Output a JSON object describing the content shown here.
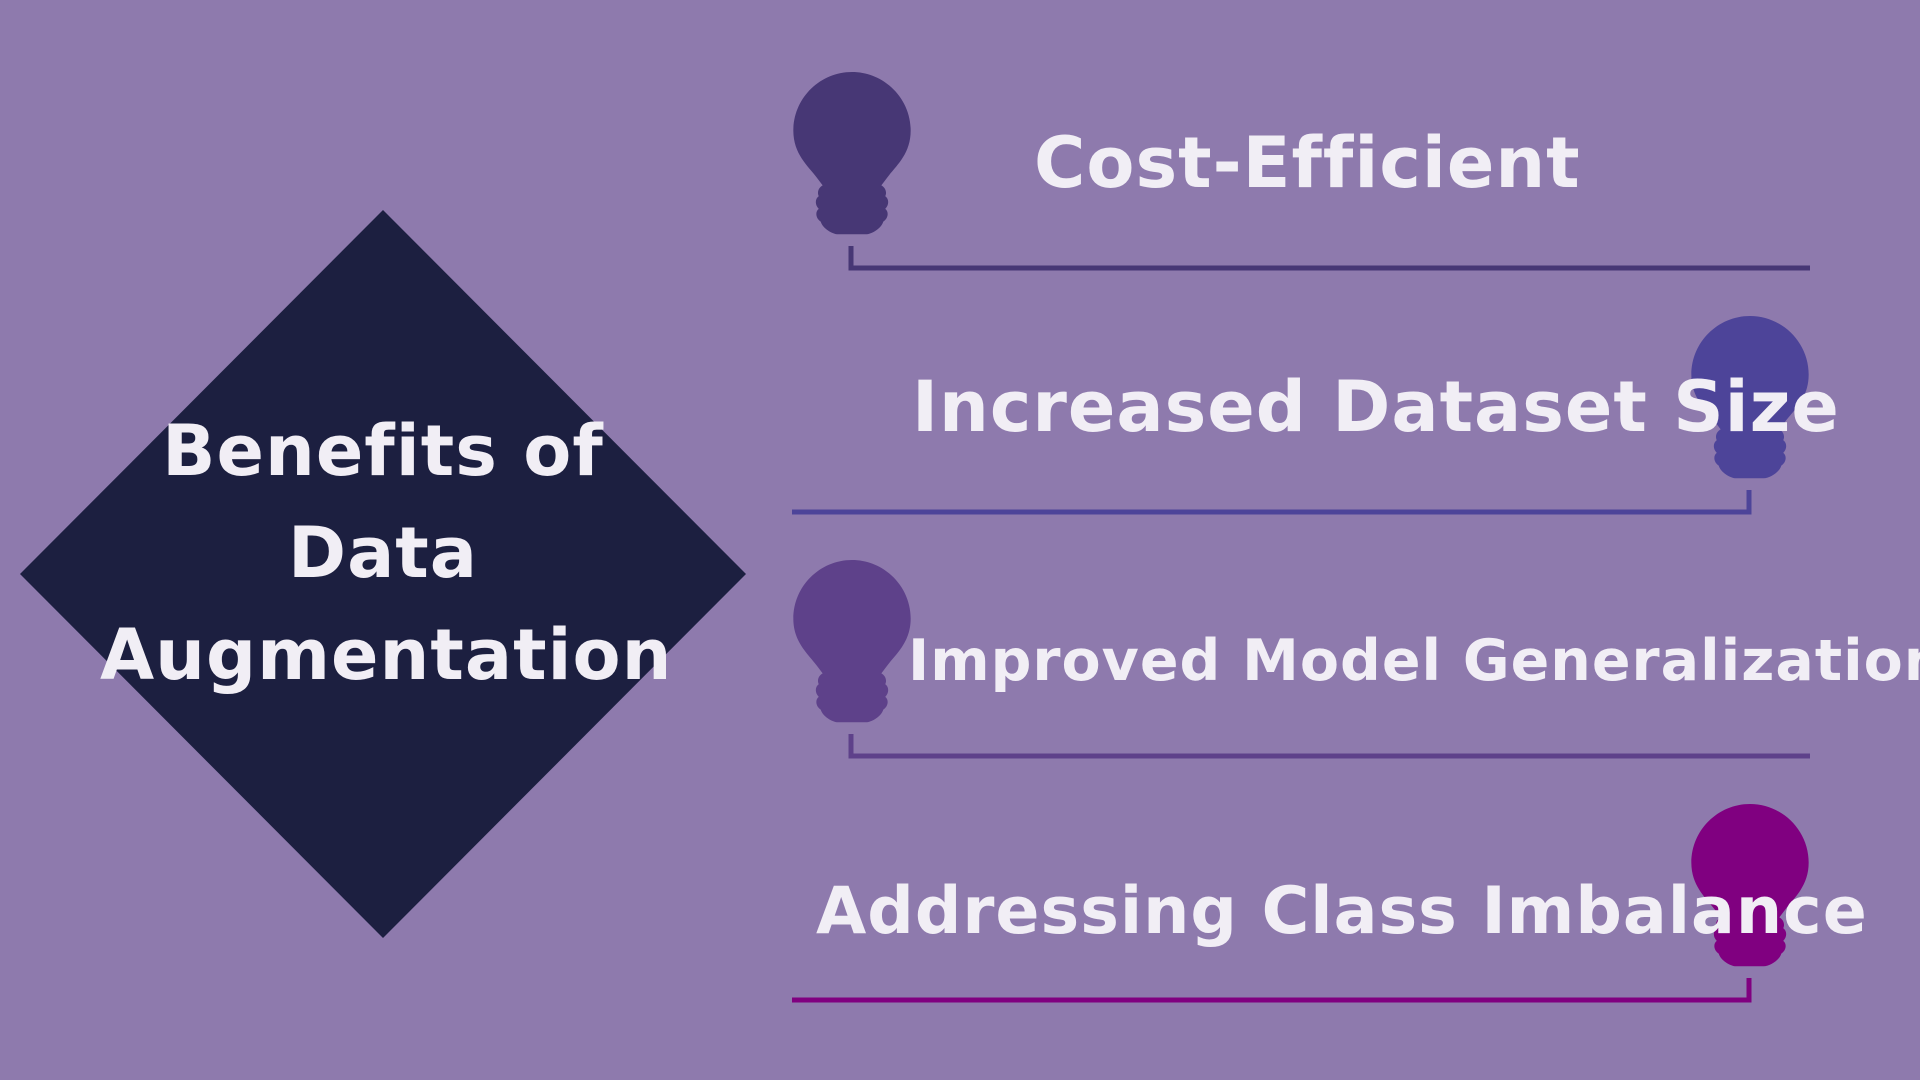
{
  "title": {
    "line1": "Benefits of",
    "line2": "Data",
    "line3": "Augmentation"
  },
  "benefits": [
    {
      "label": "Cost-Efficient",
      "color": "#473775",
      "icon": "lightbulb-icon"
    },
    {
      "label": "Increased Dataset Size",
      "color": "#4d4499",
      "icon": "lightbulb-icon"
    },
    {
      "label": "Improved Model Generalization",
      "color": "#5e418a",
      "icon": "lightbulb-icon"
    },
    {
      "label": "Addressing Class Imbalance",
      "color": "#800080",
      "icon": "lightbulb-icon"
    }
  ],
  "colors": {
    "background": "#8e7aad",
    "diamond": "#1c1f40",
    "text": "#f1eef5"
  }
}
